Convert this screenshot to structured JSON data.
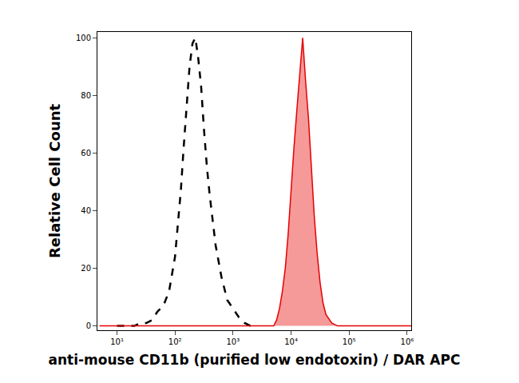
{
  "chart_data": {
    "type": "line",
    "x_label": "anti-mouse CD11b (purified low endotoxin) / DAR APC",
    "y_label": "Relative Cell Count",
    "log": "x",
    "grid": false,
    "xlim": [
      4.6,
      1175000
    ],
    "xticks": [
      {
        "value": 10,
        "label": "10¹"
      },
      {
        "value": 100,
        "label": "10²"
      },
      {
        "value": 1000,
        "label": "10³"
      },
      {
        "value": 10000,
        "label": "10⁴"
      },
      {
        "value": 100000,
        "label": "10⁵"
      },
      {
        "value": 1000000,
        "label": "10⁶"
      }
    ],
    "ylim": [
      -1.5,
      102
    ],
    "yticks": [
      0,
      20,
      40,
      60,
      80,
      100
    ],
    "series": [
      {
        "type": "line",
        "color": "#000000",
        "line_style": "dashed",
        "x": [
          10,
          20,
          25,
          32,
          40,
          50,
          63,
          79,
          100,
          112,
          126,
          141,
          158,
          178,
          200,
          224,
          251,
          282,
          316,
          355,
          398,
          501,
          631,
          794,
          1000,
          1259,
          1585,
          1995
        ],
        "values": [
          0,
          0,
          1,
          1,
          2,
          5,
          7,
          12,
          24,
          35,
          47,
          62,
          75,
          90,
          98,
          100,
          93,
          83,
          68,
          55,
          45,
          28,
          17,
          9,
          6,
          3,
          1,
          0
        ]
      },
      {
        "type": "area",
        "color": "#e60000",
        "line_style": "solid",
        "x": [
          5,
          5012,
          5623,
          6310,
          7079,
          7943,
          8913,
          10000,
          11220,
          12589,
          14125,
          15849,
          17783,
          19953,
          22387,
          25119,
          28184,
          31623,
          35481,
          39811,
          50119,
          63096,
          1175000
        ],
        "values": [
          0,
          0,
          2,
          6,
          12,
          20,
          32,
          48,
          62,
          75,
          88,
          100,
          85,
          72,
          55,
          38,
          25,
          15,
          8,
          4,
          1,
          0,
          0
        ]
      }
    ]
  }
}
